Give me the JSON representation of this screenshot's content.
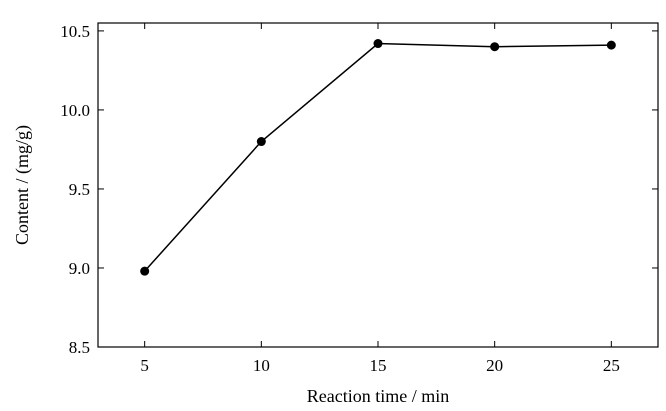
{
  "chart_data": {
    "type": "line",
    "title": "",
    "xlabel": "Reaction time / min",
    "ylabel": "Content / (mg/g)",
    "x": [
      5,
      10,
      15,
      20,
      25
    ],
    "series": [
      {
        "values": [
          8.98,
          9.8,
          10.42,
          10.4,
          10.41
        ]
      }
    ],
    "xlim": [
      3,
      27
    ],
    "ylim": [
      8.5,
      10.55
    ],
    "xticks": [
      5,
      10,
      15,
      20,
      25
    ],
    "yticks": [
      8.5,
      9.0,
      9.5,
      10.0,
      10.5
    ],
    "xtick_labels": [
      "5",
      "10",
      "15",
      "20",
      "25"
    ],
    "ytick_labels": [
      "8.5",
      "9.0",
      "9.5",
      "10.0",
      "10.5"
    ],
    "grid": false,
    "legend": "none",
    "marker": "filled-circle",
    "color": "#000000"
  }
}
